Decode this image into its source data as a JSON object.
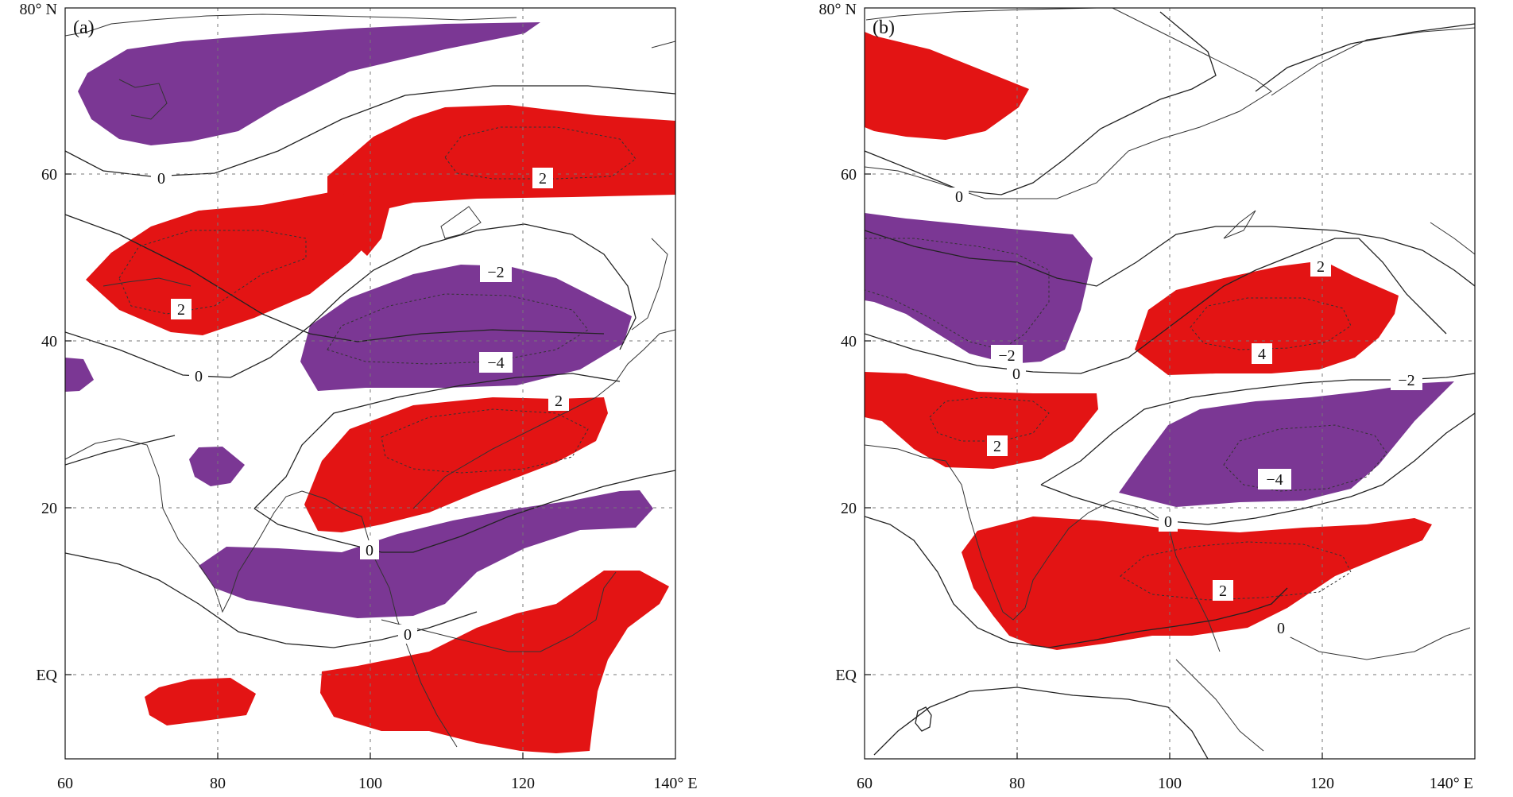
{
  "figure": {
    "colors": {
      "positive": "#e31414",
      "negative": "#7b3794",
      "line": "#222222",
      "grid": "#777777"
    },
    "panels": [
      {
        "id": "a",
        "label": "(a)",
        "y_ticks": [
          "80° N",
          "60",
          "40",
          "20",
          "EQ"
        ],
        "x_ticks": [
          "60",
          "80",
          "100",
          "120",
          "140° E"
        ],
        "contour_labels": [
          {
            "text": "0"
          },
          {
            "text": "2"
          },
          {
            "text": "2"
          },
          {
            "text": "−2"
          },
          {
            "text": "0"
          },
          {
            "text": "−4"
          },
          {
            "text": "2"
          },
          {
            "text": "0"
          },
          {
            "text": "0"
          }
        ]
      },
      {
        "id": "b",
        "label": "(b)",
        "y_ticks": [
          "80° N",
          "60",
          "40",
          "20",
          "EQ"
        ],
        "x_ticks": [
          "60",
          "80",
          "100",
          "120",
          "140° E"
        ],
        "contour_labels": [
          {
            "text": "0"
          },
          {
            "text": "2"
          },
          {
            "text": "−2"
          },
          {
            "text": "0"
          },
          {
            "text": "4"
          },
          {
            "text": "2"
          },
          {
            "text": "−2"
          },
          {
            "text": "−4"
          },
          {
            "text": "0"
          },
          {
            "text": "2"
          },
          {
            "text": "0"
          }
        ]
      }
    ]
  }
}
